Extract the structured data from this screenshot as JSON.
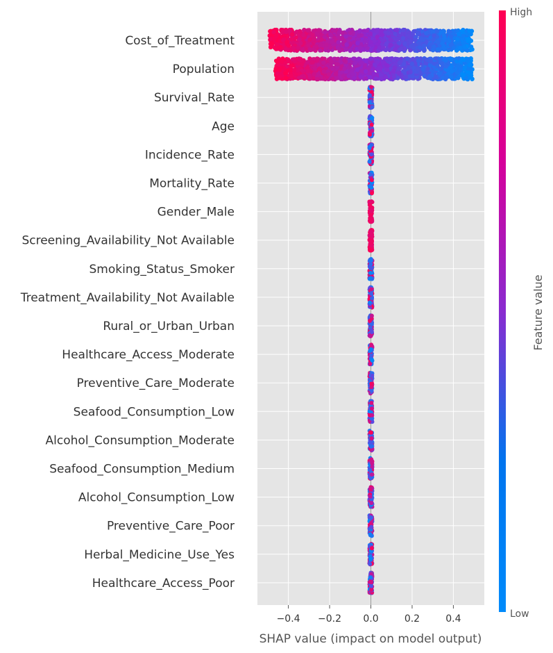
{
  "chart_data": {
    "type": "scatter",
    "xlabel": "SHAP value (impact on model output)",
    "xlim": [
      -0.55,
      0.55
    ],
    "xticks": [
      -0.4,
      -0.2,
      0.0,
      0.2,
      0.4
    ],
    "xtick_labels": [
      "−0.4",
      "−0.2",
      "0.0",
      "0.2",
      "0.4"
    ],
    "grid": true,
    "colors": {
      "high": "#ff0052",
      "low": "#008bfb",
      "background": "#e5e5e5"
    },
    "colorbar": {
      "title": "Feature value",
      "high_label": "High",
      "low_label": "Low"
    },
    "features": [
      {
        "name": "Cost_of_Treatment",
        "shap_min": -0.49,
        "shap_max": 0.49,
        "high_value_side": "negative"
      },
      {
        "name": "Population",
        "shap_min": -0.46,
        "shap_max": 0.49,
        "high_value_side": "negative"
      },
      {
        "name": "Survival_Rate",
        "shap_min": -0.004,
        "shap_max": 0.004,
        "high_value_side": "mixed"
      },
      {
        "name": "Age",
        "shap_min": -0.004,
        "shap_max": 0.004,
        "high_value_side": "mixed"
      },
      {
        "name": "Incidence_Rate",
        "shap_min": -0.004,
        "shap_max": 0.004,
        "high_value_side": "mixed"
      },
      {
        "name": "Mortality_Rate",
        "shap_min": -0.004,
        "shap_max": 0.004,
        "high_value_side": "mixed"
      },
      {
        "name": "Gender_Male",
        "shap_min": -0.004,
        "shap_max": 0.004,
        "high_value_side": "high"
      },
      {
        "name": "Screening_Availability_Not Available",
        "shap_min": -0.004,
        "shap_max": 0.004,
        "high_value_side": "high"
      },
      {
        "name": "Smoking_Status_Smoker",
        "shap_min": -0.004,
        "shap_max": 0.004,
        "high_value_side": "mixed"
      },
      {
        "name": "Treatment_Availability_Not Available",
        "shap_min": -0.004,
        "shap_max": 0.004,
        "high_value_side": "mixed"
      },
      {
        "name": "Rural_or_Urban_Urban",
        "shap_min": -0.004,
        "shap_max": 0.004,
        "high_value_side": "mixed"
      },
      {
        "name": "Healthcare_Access_Moderate",
        "shap_min": -0.004,
        "shap_max": 0.004,
        "high_value_side": "mixed"
      },
      {
        "name": "Preventive_Care_Moderate",
        "shap_min": -0.004,
        "shap_max": 0.004,
        "high_value_side": "mixed"
      },
      {
        "name": "Seafood_Consumption_Low",
        "shap_min": -0.004,
        "shap_max": 0.004,
        "high_value_side": "mixed"
      },
      {
        "name": "Alcohol_Consumption_Moderate",
        "shap_min": -0.004,
        "shap_max": 0.004,
        "high_value_side": "mixed"
      },
      {
        "name": "Seafood_Consumption_Medium",
        "shap_min": -0.004,
        "shap_max": 0.004,
        "high_value_side": "mixed"
      },
      {
        "name": "Alcohol_Consumption_Low",
        "shap_min": -0.004,
        "shap_max": 0.004,
        "high_value_side": "mixed"
      },
      {
        "name": "Preventive_Care_Poor",
        "shap_min": -0.004,
        "shap_max": 0.004,
        "high_value_side": "mixed"
      },
      {
        "name": "Herbal_Medicine_Use_Yes",
        "shap_min": -0.004,
        "shap_max": 0.004,
        "high_value_side": "mixed"
      },
      {
        "name": "Healthcare_Access_Poor",
        "shap_min": -0.004,
        "shap_max": 0.004,
        "high_value_side": "mixed"
      }
    ]
  }
}
